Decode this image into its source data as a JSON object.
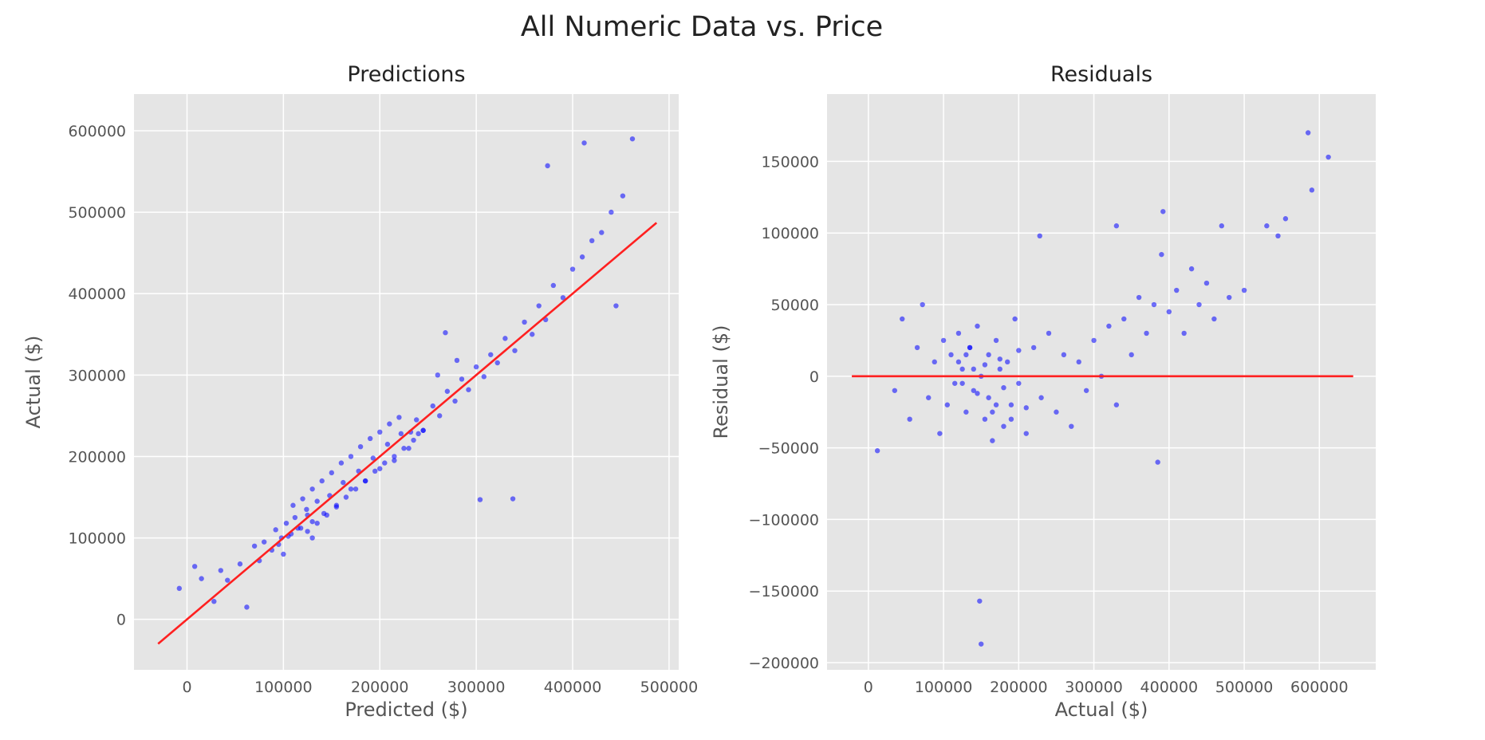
{
  "figure": {
    "title": "All Numeric Data vs. Price"
  },
  "chart_data": [
    {
      "type": "scatter",
      "title": "Predictions",
      "xlabel": "Predicted ($)",
      "ylabel": "Actual ($)",
      "xlim": [
        -55000,
        510000
      ],
      "ylim": [
        -62000,
        645000
      ],
      "xticks": [
        0,
        100000,
        200000,
        300000,
        400000,
        500000
      ],
      "yticks": [
        0,
        100000,
        200000,
        300000,
        400000,
        500000,
        600000
      ],
      "xtick_labels": [
        "0",
        "100000",
        "200000",
        "300000",
        "400000",
        "500000"
      ],
      "ytick_labels": [
        "0",
        "100000",
        "200000",
        "300000",
        "400000",
        "500000",
        "600000"
      ],
      "grid": true,
      "point_color": "#0000ff",
      "line_color": "#ff2020",
      "background": "#e5e5e5",
      "reference_line": {
        "x": [
          -30000,
          487000
        ],
        "y": [
          -30000,
          487000
        ]
      },
      "points": {
        "x": [
          -8000,
          8000,
          15000,
          28000,
          35000,
          42000,
          55000,
          62000,
          70000,
          75000,
          80000,
          88000,
          92000,
          98000,
          103000,
          108000,
          112000,
          118000,
          124000,
          130000,
          135000,
          142000,
          148000,
          155000,
          162000,
          170000,
          178000,
          185000,
          193000,
          200000,
          208000,
          215000,
          222000,
          230000,
          238000,
          245000,
          255000,
          262000,
          270000,
          278000,
          285000,
          292000,
          300000,
          308000,
          315000,
          322000,
          330000,
          340000,
          350000,
          358000,
          365000,
          372000,
          380000,
          390000,
          400000,
          410000,
          420000,
          430000,
          440000,
          452000,
          462000,
          110000,
          120000,
          130000,
          140000,
          150000,
          160000,
          170000,
          180000,
          190000,
          200000,
          210000,
          220000,
          240000,
          260000,
          280000,
          125000,
          135000,
          145000,
          155000,
          165000,
          175000,
          185000,
          195000,
          205000,
          215000,
          225000,
          235000,
          245000,
          95000,
          105000,
          115000,
          125000,
          100000,
          304000,
          338000,
          374000,
          412000,
          445000,
          130000,
          232000,
          268000
        ],
        "y": [
          38000,
          65000,
          50000,
          22000,
          60000,
          48000,
          68000,
          15000,
          90000,
          72000,
          95000,
          85000,
          110000,
          100000,
          118000,
          105000,
          125000,
          112000,
          135000,
          120000,
          145000,
          130000,
          152000,
          140000,
          168000,
          160000,
          182000,
          170000,
          198000,
          185000,
          215000,
          195000,
          228000,
          210000,
          245000,
          232000,
          262000,
          250000,
          280000,
          268000,
          295000,
          282000,
          310000,
          298000,
          325000,
          315000,
          345000,
          330000,
          365000,
          350000,
          385000,
          368000,
          410000,
          395000,
          430000,
          445000,
          465000,
          475000,
          500000,
          520000,
          590000,
          140000,
          148000,
          160000,
          170000,
          180000,
          192000,
          200000,
          212000,
          222000,
          230000,
          240000,
          248000,
          228000,
          300000,
          318000,
          108000,
          118000,
          128000,
          138000,
          150000,
          160000,
          170000,
          182000,
          192000,
          200000,
          210000,
          220000,
          232000,
          92000,
          102000,
          112000,
          128000,
          80000,
          147000,
          148000,
          557000,
          585000,
          385000,
          100000,
          230000,
          352000
        ]
      }
    },
    {
      "type": "scatter",
      "title": "Residuals",
      "xlabel": "Actual ($)",
      "ylabel": "Residual ($)",
      "xlim": [
        -55000,
        675000
      ],
      "ylim": [
        -205000,
        197000
      ],
      "xticks": [
        0,
        100000,
        200000,
        300000,
        400000,
        500000,
        600000
      ],
      "yticks": [
        -200000,
        -150000,
        -100000,
        -50000,
        0,
        50000,
        100000,
        150000
      ],
      "xtick_labels": [
        "0",
        "100000",
        "200000",
        "300000",
        "400000",
        "500000",
        "600000"
      ],
      "ytick_labels": [
        "−200000",
        "−150000",
        "−100000",
        "−50000",
        "0",
        "50000",
        "100000",
        "150000"
      ],
      "grid": true,
      "point_color": "#0000ff",
      "line_color": "#ff2020",
      "background": "#e5e5e5",
      "reference_line": {
        "x": [
          -22000,
          645000
        ],
        "y": [
          0,
          0
        ]
      },
      "points": {
        "x": [
          12000,
          35000,
          45000,
          55000,
          65000,
          72000,
          80000,
          88000,
          95000,
          100000,
          105000,
          110000,
          115000,
          120000,
          125000,
          130000,
          135000,
          140000,
          145000,
          150000,
          155000,
          160000,
          165000,
          170000,
          175000,
          180000,
          185000,
          190000,
          195000,
          200000,
          210000,
          220000,
          230000,
          240000,
          250000,
          260000,
          270000,
          280000,
          290000,
          300000,
          310000,
          320000,
          330000,
          340000,
          350000,
          360000,
          370000,
          380000,
          390000,
          400000,
          410000,
          420000,
          430000,
          440000,
          450000,
          460000,
          470000,
          480000,
          500000,
          530000,
          545000,
          555000,
          585000,
          590000,
          612000,
          148000,
          150000,
          392000,
          330000,
          228000,
          385000,
          120000,
          130000,
          140000,
          160000,
          170000,
          180000,
          125000,
          135000,
          145000,
          155000,
          165000,
          175000,
          190000,
          200000,
          210000
        ],
        "y": [
          -52000,
          -10000,
          40000,
          -30000,
          20000,
          50000,
          -15000,
          10000,
          -40000,
          25000,
          -20000,
          15000,
          -5000,
          30000,
          5000,
          -25000,
          20000,
          -10000,
          35000,
          0,
          -30000,
          15000,
          -45000,
          25000,
          5000,
          -35000,
          10000,
          -20000,
          40000,
          -5000,
          -40000,
          20000,
          -15000,
          30000,
          -25000,
          15000,
          -35000,
          10000,
          -10000,
          25000,
          0,
          35000,
          -20000,
          40000,
          15000,
          55000,
          30000,
          50000,
          85000,
          45000,
          60000,
          30000,
          75000,
          50000,
          65000,
          40000,
          105000,
          55000,
          60000,
          105000,
          98000,
          110000,
          170000,
          130000,
          153000,
          -157000,
          -187000,
          115000,
          105000,
          98000,
          -60000,
          10000,
          15000,
          5000,
          -15000,
          -20000,
          -8000,
          -5000,
          20000,
          -12000,
          8000,
          -25000,
          12000,
          -30000,
          18000,
          -22000
        ]
      }
    }
  ]
}
